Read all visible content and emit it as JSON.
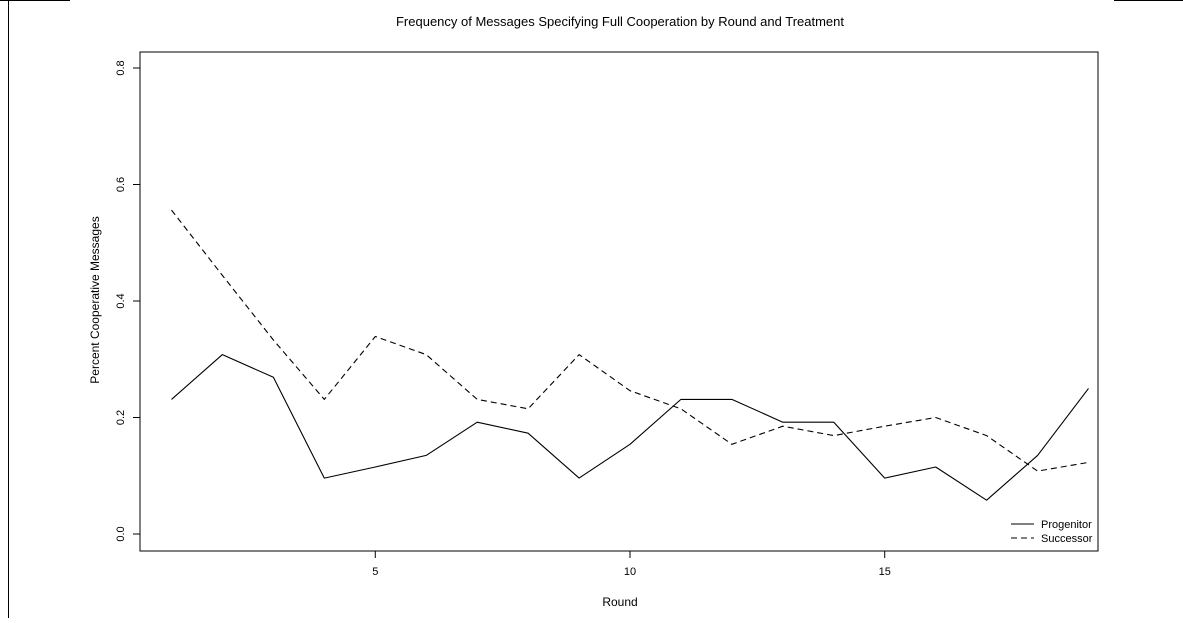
{
  "chart_data": {
    "type": "line",
    "title": "Frequency of Messages Specifying Full Cooperation by Round and Treatment",
    "xlabel": "Round",
    "ylabel": "Percent Cooperative Messages",
    "xlim": [
      1,
      19
    ],
    "ylim": [
      0,
      0.8
    ],
    "xticks": [
      5,
      10,
      15
    ],
    "yticks": [
      0.0,
      0.2,
      0.4,
      0.6,
      0.8
    ],
    "ytick_labels": [
      "0.0",
      "0.2",
      "0.4",
      "0.6",
      "0.8"
    ],
    "legend_position": "bottom-right",
    "grid": false,
    "x": [
      1,
      2,
      3,
      4,
      5,
      6,
      7,
      8,
      9,
      10,
      11,
      12,
      13,
      14,
      15,
      16,
      17,
      18,
      19
    ],
    "series": [
      {
        "name": "Progenitor",
        "line_style": "solid",
        "color": "#000000",
        "values": [
          0.231,
          0.308,
          0.269,
          0.096,
          0.115,
          0.135,
          0.192,
          0.173,
          0.096,
          0.154,
          0.231,
          0.231,
          0.192,
          0.192,
          0.096,
          0.115,
          0.058,
          0.135,
          0.25
        ]
      },
      {
        "name": "Successor",
        "line_style": "dashed",
        "color": "#000000",
        "values": [
          0.556,
          0.444,
          0.333,
          0.231,
          0.339,
          0.308,
          0.231,
          0.215,
          0.308,
          0.246,
          0.215,
          0.154,
          0.185,
          0.169,
          0.185,
          0.2,
          0.169,
          0.108,
          0.123
        ]
      }
    ]
  }
}
